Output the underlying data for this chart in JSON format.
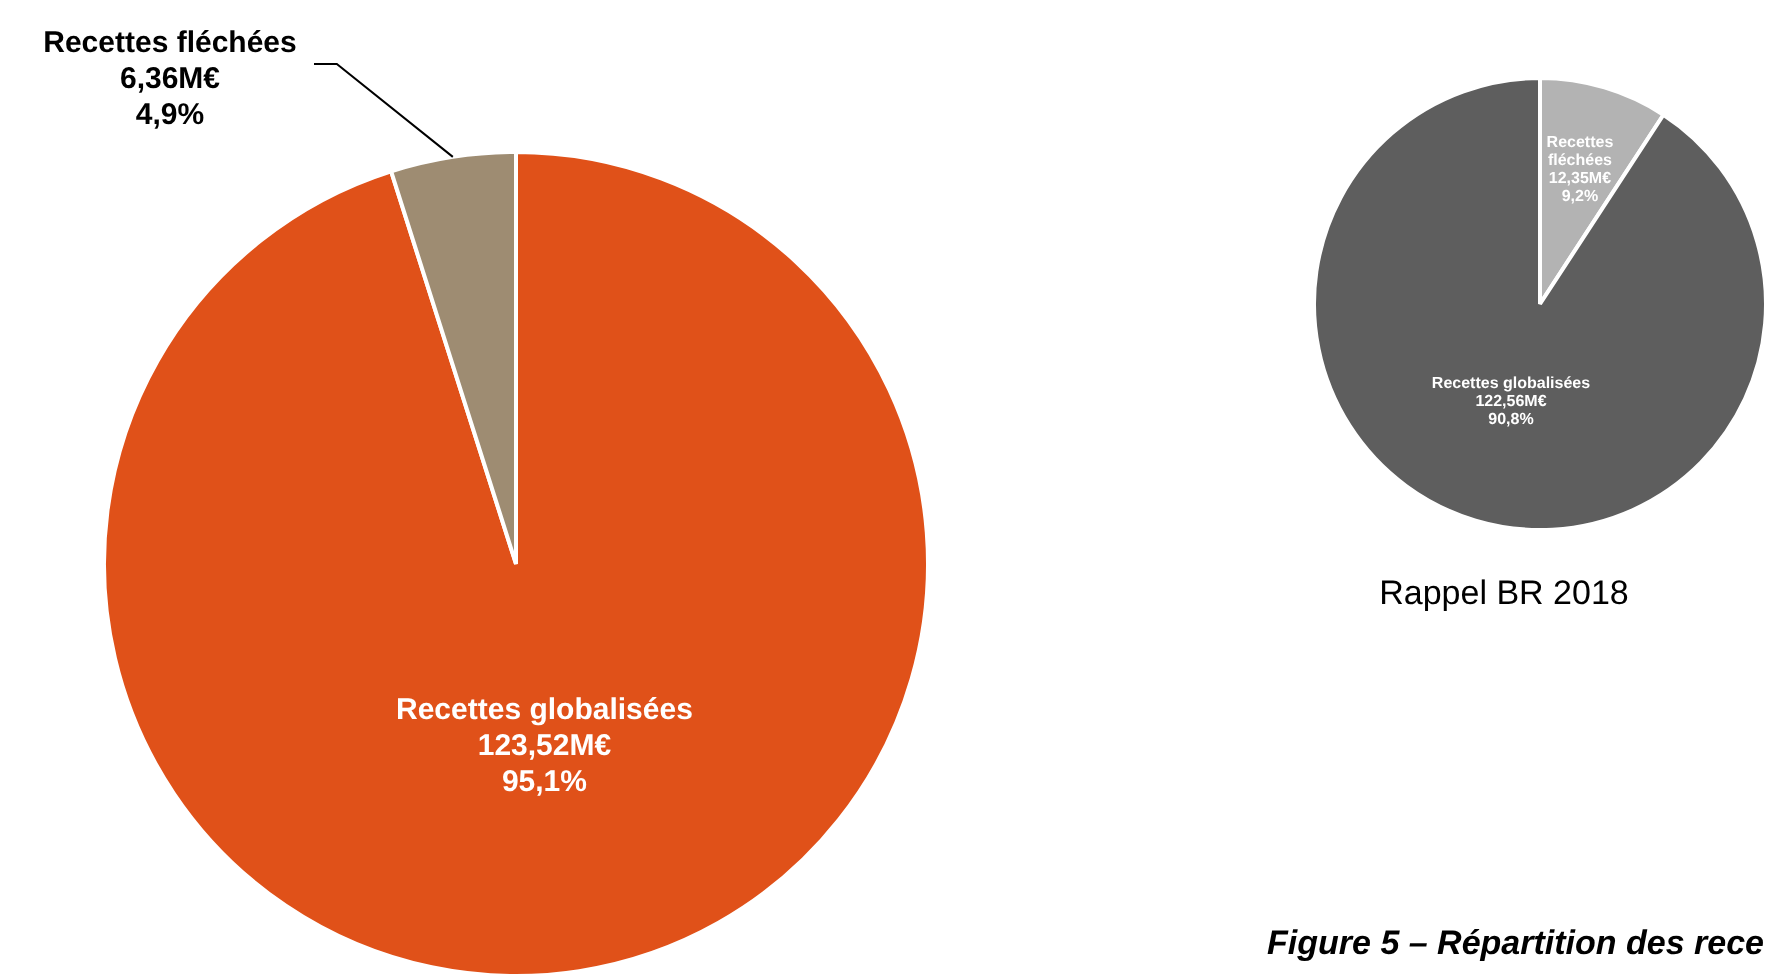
{
  "chart_data": [
    {
      "type": "pie",
      "categories": [
        "Recettes globalisées\n123,52M€",
        "Recettes fléchées\n6,36M€"
      ],
      "values": [
        95.1,
        4.9
      ],
      "colors": [
        "#e05119",
        "#9e8c72"
      ],
      "value_labels": [
        "95,1%",
        "4,9%"
      ],
      "legend": false
    },
    {
      "type": "pie",
      "title": "Rappel BR 2018",
      "categories": [
        "Recettes fléchées\n12,35M€",
        "Recettes globalisées\n122,56M€"
      ],
      "values": [
        9.2,
        90.8
      ],
      "colors": [
        "#b3b3b3",
        "#5e5e5e"
      ],
      "value_labels": [
        "9,2%",
        "90,8%"
      ],
      "legend": false,
      "annotations": [
        "Figure 5 – Répartition des rece"
      ]
    }
  ]
}
